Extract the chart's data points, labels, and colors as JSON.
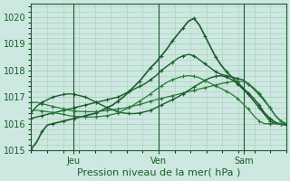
{
  "xlabel": "Pression niveau de la mer( hPa )",
  "bg_color": "#cce8e0",
  "grid_color": "#aaccbb",
  "line_color_dark": "#1a5c2a",
  "line_color_med": "#2a7a3a",
  "line_color_light": "#4a9a5a",
  "ylim": [
    1015.0,
    1020.5
  ],
  "xlim": [
    0,
    96
  ],
  "yticks": [
    1015,
    1016,
    1017,
    1018,
    1019,
    1020
  ],
  "xtick_positions": [
    16,
    48,
    80
  ],
  "xtick_labels": [
    "Jeu",
    "Ven",
    "Sam"
  ],
  "series": [
    {
      "color": "#1a5c2a",
      "lw": 1.2,
      "y": [
        1015.05,
        1015.3,
        1015.7,
        1015.95,
        1016.0,
        1016.05,
        1016.1,
        1016.15,
        1016.2,
        1016.25,
        1016.3,
        1016.35,
        1016.4,
        1016.5,
        1016.6,
        1016.7,
        1016.85,
        1017.0,
        1017.2,
        1017.4,
        1017.6,
        1017.85,
        1018.1,
        1018.3,
        1018.55,
        1018.8,
        1019.1,
        1019.35,
        1019.6,
        1019.85,
        1019.95,
        1019.7,
        1019.3,
        1018.9,
        1018.5,
        1018.2,
        1017.95,
        1017.75,
        1017.55,
        1017.35,
        1017.15,
        1016.95,
        1016.7,
        1016.4,
        1016.2,
        1016.05,
        1015.98,
        1015.95
      ]
    },
    {
      "color": "#1a5c2a",
      "lw": 1.0,
      "y": [
        1016.2,
        1016.25,
        1016.3,
        1016.35,
        1016.4,
        1016.45,
        1016.5,
        1016.55,
        1016.6,
        1016.65,
        1016.7,
        1016.75,
        1016.8,
        1016.85,
        1016.9,
        1016.95,
        1017.0,
        1017.1,
        1017.2,
        1017.3,
        1017.4,
        1017.5,
        1017.65,
        1017.8,
        1018.0,
        1018.15,
        1018.3,
        1018.45,
        1018.55,
        1018.6,
        1018.55,
        1018.4,
        1018.25,
        1018.1,
        1017.95,
        1017.85,
        1017.8,
        1017.75,
        1017.7,
        1017.65,
        1017.5,
        1017.3,
        1017.1,
        1016.85,
        1016.6,
        1016.3,
        1016.1,
        1016.0
      ]
    },
    {
      "color": "#2a7a3a",
      "lw": 0.9,
      "y": [
        1016.8,
        1016.8,
        1016.75,
        1016.7,
        1016.65,
        1016.6,
        1016.55,
        1016.5,
        1016.48,
        1016.46,
        1016.45,
        1016.45,
        1016.45,
        1016.47,
        1016.5,
        1016.52,
        1016.55,
        1016.58,
        1016.62,
        1016.67,
        1016.72,
        1016.78,
        1016.85,
        1016.9,
        1016.95,
        1017.0,
        1017.05,
        1017.1,
        1017.15,
        1017.2,
        1017.25,
        1017.3,
        1017.35,
        1017.4,
        1017.45,
        1017.5,
        1017.55,
        1017.58,
        1017.6,
        1017.58,
        1017.5,
        1017.35,
        1017.15,
        1016.9,
        1016.6,
        1016.3,
        1016.1,
        1016.0
      ]
    },
    {
      "color": "#1a5c2a",
      "lw": 1.0,
      "y": [
        1016.4,
        1016.65,
        1016.8,
        1016.9,
        1017.0,
        1017.05,
        1017.1,
        1017.12,
        1017.1,
        1017.05,
        1017.0,
        1016.9,
        1016.8,
        1016.7,
        1016.6,
        1016.52,
        1016.45,
        1016.4,
        1016.38,
        1016.38,
        1016.4,
        1016.45,
        1016.5,
        1016.6,
        1016.7,
        1016.8,
        1016.9,
        1017.0,
        1017.12,
        1017.25,
        1017.38,
        1017.5,
        1017.62,
        1017.72,
        1017.78,
        1017.8,
        1017.75,
        1017.65,
        1017.5,
        1017.3,
        1017.1,
        1016.85,
        1016.6,
        1016.35,
        1016.1,
        1016.0,
        1015.98,
        1015.95
      ]
    },
    {
      "color": "#2a7a3a",
      "lw": 0.9,
      "y": [
        1016.5,
        1016.5,
        1016.48,
        1016.45,
        1016.42,
        1016.38,
        1016.35,
        1016.3,
        1016.28,
        1016.26,
        1016.25,
        1016.25,
        1016.26,
        1016.28,
        1016.3,
        1016.35,
        1016.4,
        1016.5,
        1016.6,
        1016.72,
        1016.85,
        1016.98,
        1017.12,
        1017.28,
        1017.42,
        1017.55,
        1017.65,
        1017.72,
        1017.78,
        1017.8,
        1017.78,
        1017.72,
        1017.62,
        1017.52,
        1017.42,
        1017.32,
        1017.22,
        1017.1,
        1016.95,
        1016.75,
        1016.55,
        1016.3,
        1016.1,
        1016.0,
        1016.0,
        1016.0,
        1016.0,
        1016.0
      ]
    }
  ]
}
